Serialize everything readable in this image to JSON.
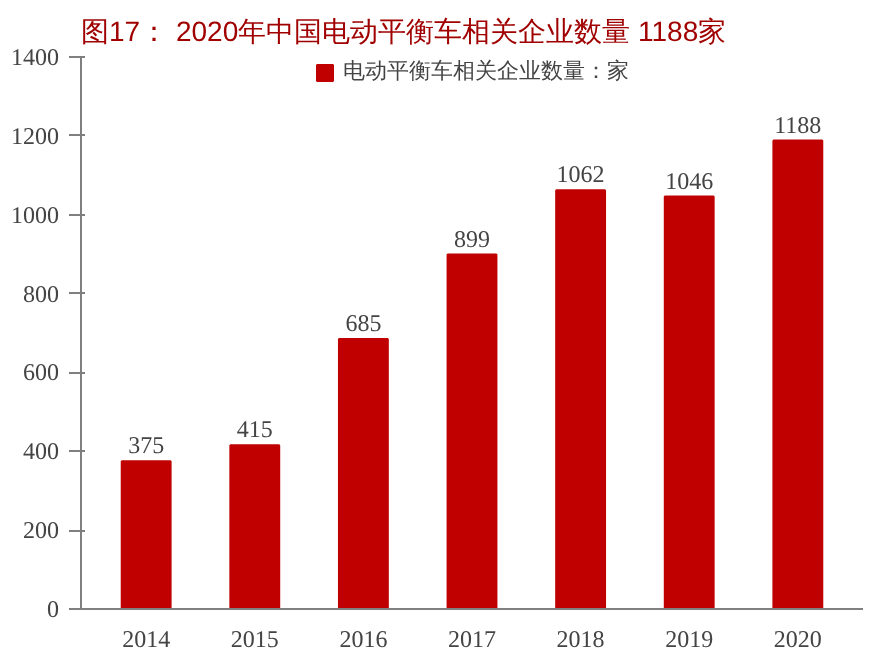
{
  "chart_data": {
    "type": "bar",
    "title": "图17：  2020年中国电动平衡车相关企业数量 1188家",
    "categories": [
      "2014",
      "2015",
      "2016",
      "2017",
      "2018",
      "2019",
      "2020"
    ],
    "series": [
      {
        "name": "电动平衡车相关企业数量：家",
        "color": "#c00000",
        "values": [
          375,
          415,
          685,
          899,
          1062,
          1046,
          1188
        ]
      }
    ],
    "ylim": [
      0,
      1400
    ],
    "yticks": [
      0,
      200,
      400,
      600,
      800,
      1000,
      1200,
      1400
    ],
    "data_labels": true,
    "legend": "top",
    "grid": false
  }
}
